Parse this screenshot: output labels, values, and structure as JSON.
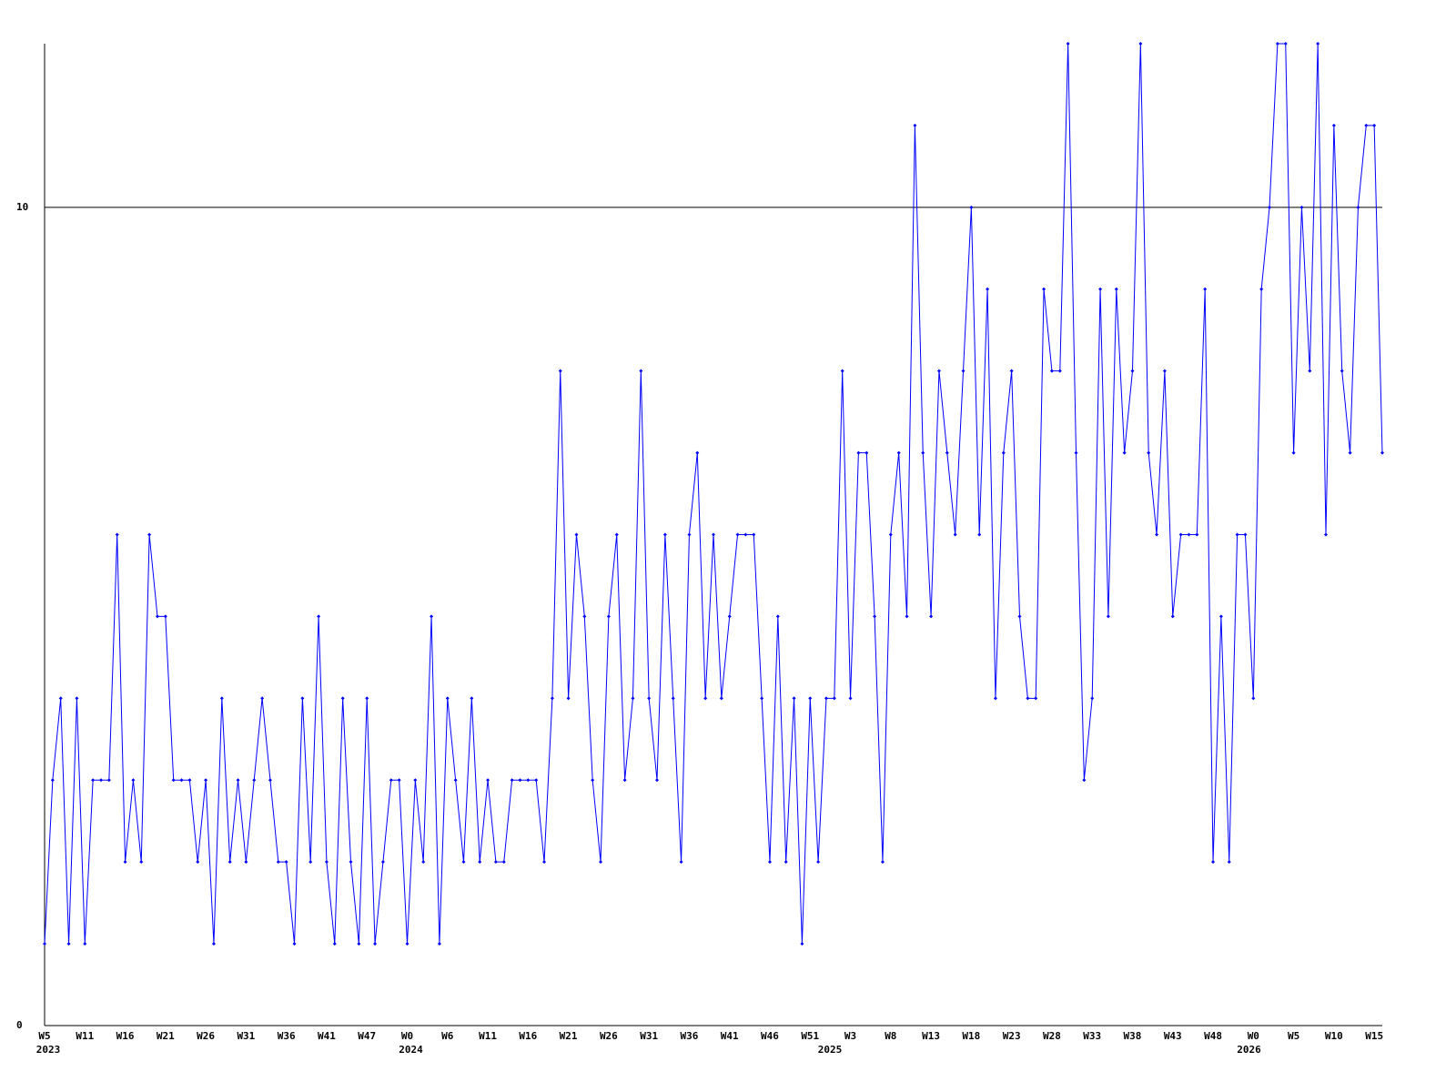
{
  "chart_data": {
    "type": "line",
    "color": "#0000ff",
    "categories": [
      "W5",
      null,
      null,
      null,
      null,
      "W11",
      null,
      null,
      null,
      null,
      "W16",
      null,
      null,
      null,
      null,
      "W21",
      null,
      null,
      null,
      null,
      "W26",
      null,
      null,
      null,
      null,
      "W31",
      null,
      null,
      null,
      null,
      "W36",
      null,
      null,
      null,
      null,
      "W41",
      null,
      null,
      null,
      null,
      "W47",
      null,
      null,
      null,
      null,
      "W0",
      null,
      null,
      null,
      null,
      "W6",
      null,
      null,
      null,
      null,
      "W11",
      null,
      null,
      null,
      null,
      "W16",
      null,
      null,
      null,
      null,
      "W21",
      null,
      null,
      null,
      null,
      "W26",
      null,
      null,
      null,
      null,
      "W31",
      null,
      null,
      null,
      null,
      "W36",
      null,
      null,
      null,
      null,
      "W41",
      null,
      null,
      null,
      null,
      "W46",
      null,
      null,
      null,
      null,
      "W51",
      null,
      null,
      null,
      null,
      "W3",
      null,
      null,
      null,
      null,
      "W8",
      null,
      null,
      null,
      null,
      "W13",
      null,
      null,
      null,
      null,
      "W18",
      null,
      null,
      null,
      null,
      "W23",
      null,
      null,
      null,
      null,
      "W28",
      null,
      null,
      null,
      null,
      "W33",
      null,
      null,
      null,
      null,
      "W38",
      null,
      null,
      null,
      null,
      "W43",
      null,
      null,
      null,
      null,
      "W48",
      null,
      null,
      null,
      null,
      "W0",
      null,
      null,
      null,
      null,
      "W5",
      null,
      null,
      null,
      null,
      "W10",
      null,
      null,
      null,
      null,
      "W15",
      null
    ],
    "years": [
      "2023",
      null,
      null,
      null,
      null,
      null,
      null,
      null,
      null,
      null,
      null,
      null,
      null,
      null,
      null,
      null,
      null,
      null,
      null,
      null,
      null,
      null,
      null,
      null,
      null,
      null,
      null,
      null,
      null,
      null,
      null,
      null,
      null,
      null,
      null,
      null,
      null,
      null,
      null,
      null,
      null,
      null,
      null,
      null,
      null,
      "2024",
      null,
      null,
      null,
      null,
      null,
      null,
      null,
      null,
      null,
      null,
      null,
      null,
      null,
      null,
      null,
      null,
      null,
      null,
      null,
      null,
      null,
      null,
      null,
      null,
      null,
      null,
      null,
      null,
      null,
      null,
      null,
      null,
      null,
      null,
      null,
      null,
      null,
      null,
      null,
      null,
      null,
      null,
      null,
      null,
      null,
      null,
      null,
      null,
      null,
      null,
      null,
      "2025",
      null,
      null,
      null,
      null,
      null,
      null,
      null,
      null,
      null,
      null,
      null,
      null,
      null,
      null,
      null,
      null,
      null,
      null,
      null,
      null,
      null,
      null,
      null,
      null,
      null,
      null,
      null,
      null,
      null,
      null,
      null,
      null,
      null,
      null,
      null,
      null,
      null,
      null,
      null,
      null,
      null,
      null,
      null,
      null,
      null,
      null,
      null,
      null,
      null,
      null,
      null,
      "2026",
      null,
      null,
      null,
      null,
      null,
      null,
      null,
      null,
      null,
      null,
      null,
      null,
      null,
      null,
      null,
      null
    ],
    "values": [
      1,
      3,
      4,
      1,
      4,
      1,
      3,
      3,
      3,
      6,
      2,
      3,
      2,
      6,
      5,
      5,
      3,
      3,
      3,
      2,
      3,
      1,
      4,
      2,
      3,
      2,
      3,
      4,
      3,
      2,
      2,
      1,
      4,
      2,
      5,
      2,
      1,
      4,
      2,
      1,
      4,
      1,
      2,
      3,
      3,
      1,
      3,
      2,
      5,
      1,
      4,
      3,
      2,
      4,
      2,
      3,
      2,
      2,
      3,
      3,
      3,
      3,
      2,
      4,
      8,
      4,
      6,
      5,
      3,
      2,
      5,
      6,
      3,
      4,
      8,
      4,
      3,
      6,
      4,
      2,
      6,
      7,
      4,
      6,
      4,
      5,
      6,
      6,
      6,
      4,
      2,
      5,
      2,
      4,
      1,
      4,
      2,
      4,
      4,
      8,
      4,
      7,
      7,
      5,
      2,
      6,
      7,
      5,
      11,
      7,
      5,
      8,
      7,
      6,
      8,
      10,
      6,
      9,
      4,
      7,
      8,
      5,
      4,
      4,
      9,
      8,
      8,
      12,
      7,
      3,
      4,
      9,
      5,
      9,
      7,
      8,
      12,
      7,
      6,
      8,
      5,
      6,
      6,
      6,
      9,
      2,
      5,
      2,
      6,
      6,
      4,
      9,
      10,
      12,
      12,
      7,
      10,
      8,
      12,
      6,
      11,
      8,
      7,
      10,
      11,
      11,
      7
    ],
    "ylim": [
      0,
      12
    ],
    "yticks": [
      0,
      10
    ],
    "grid": true
  }
}
